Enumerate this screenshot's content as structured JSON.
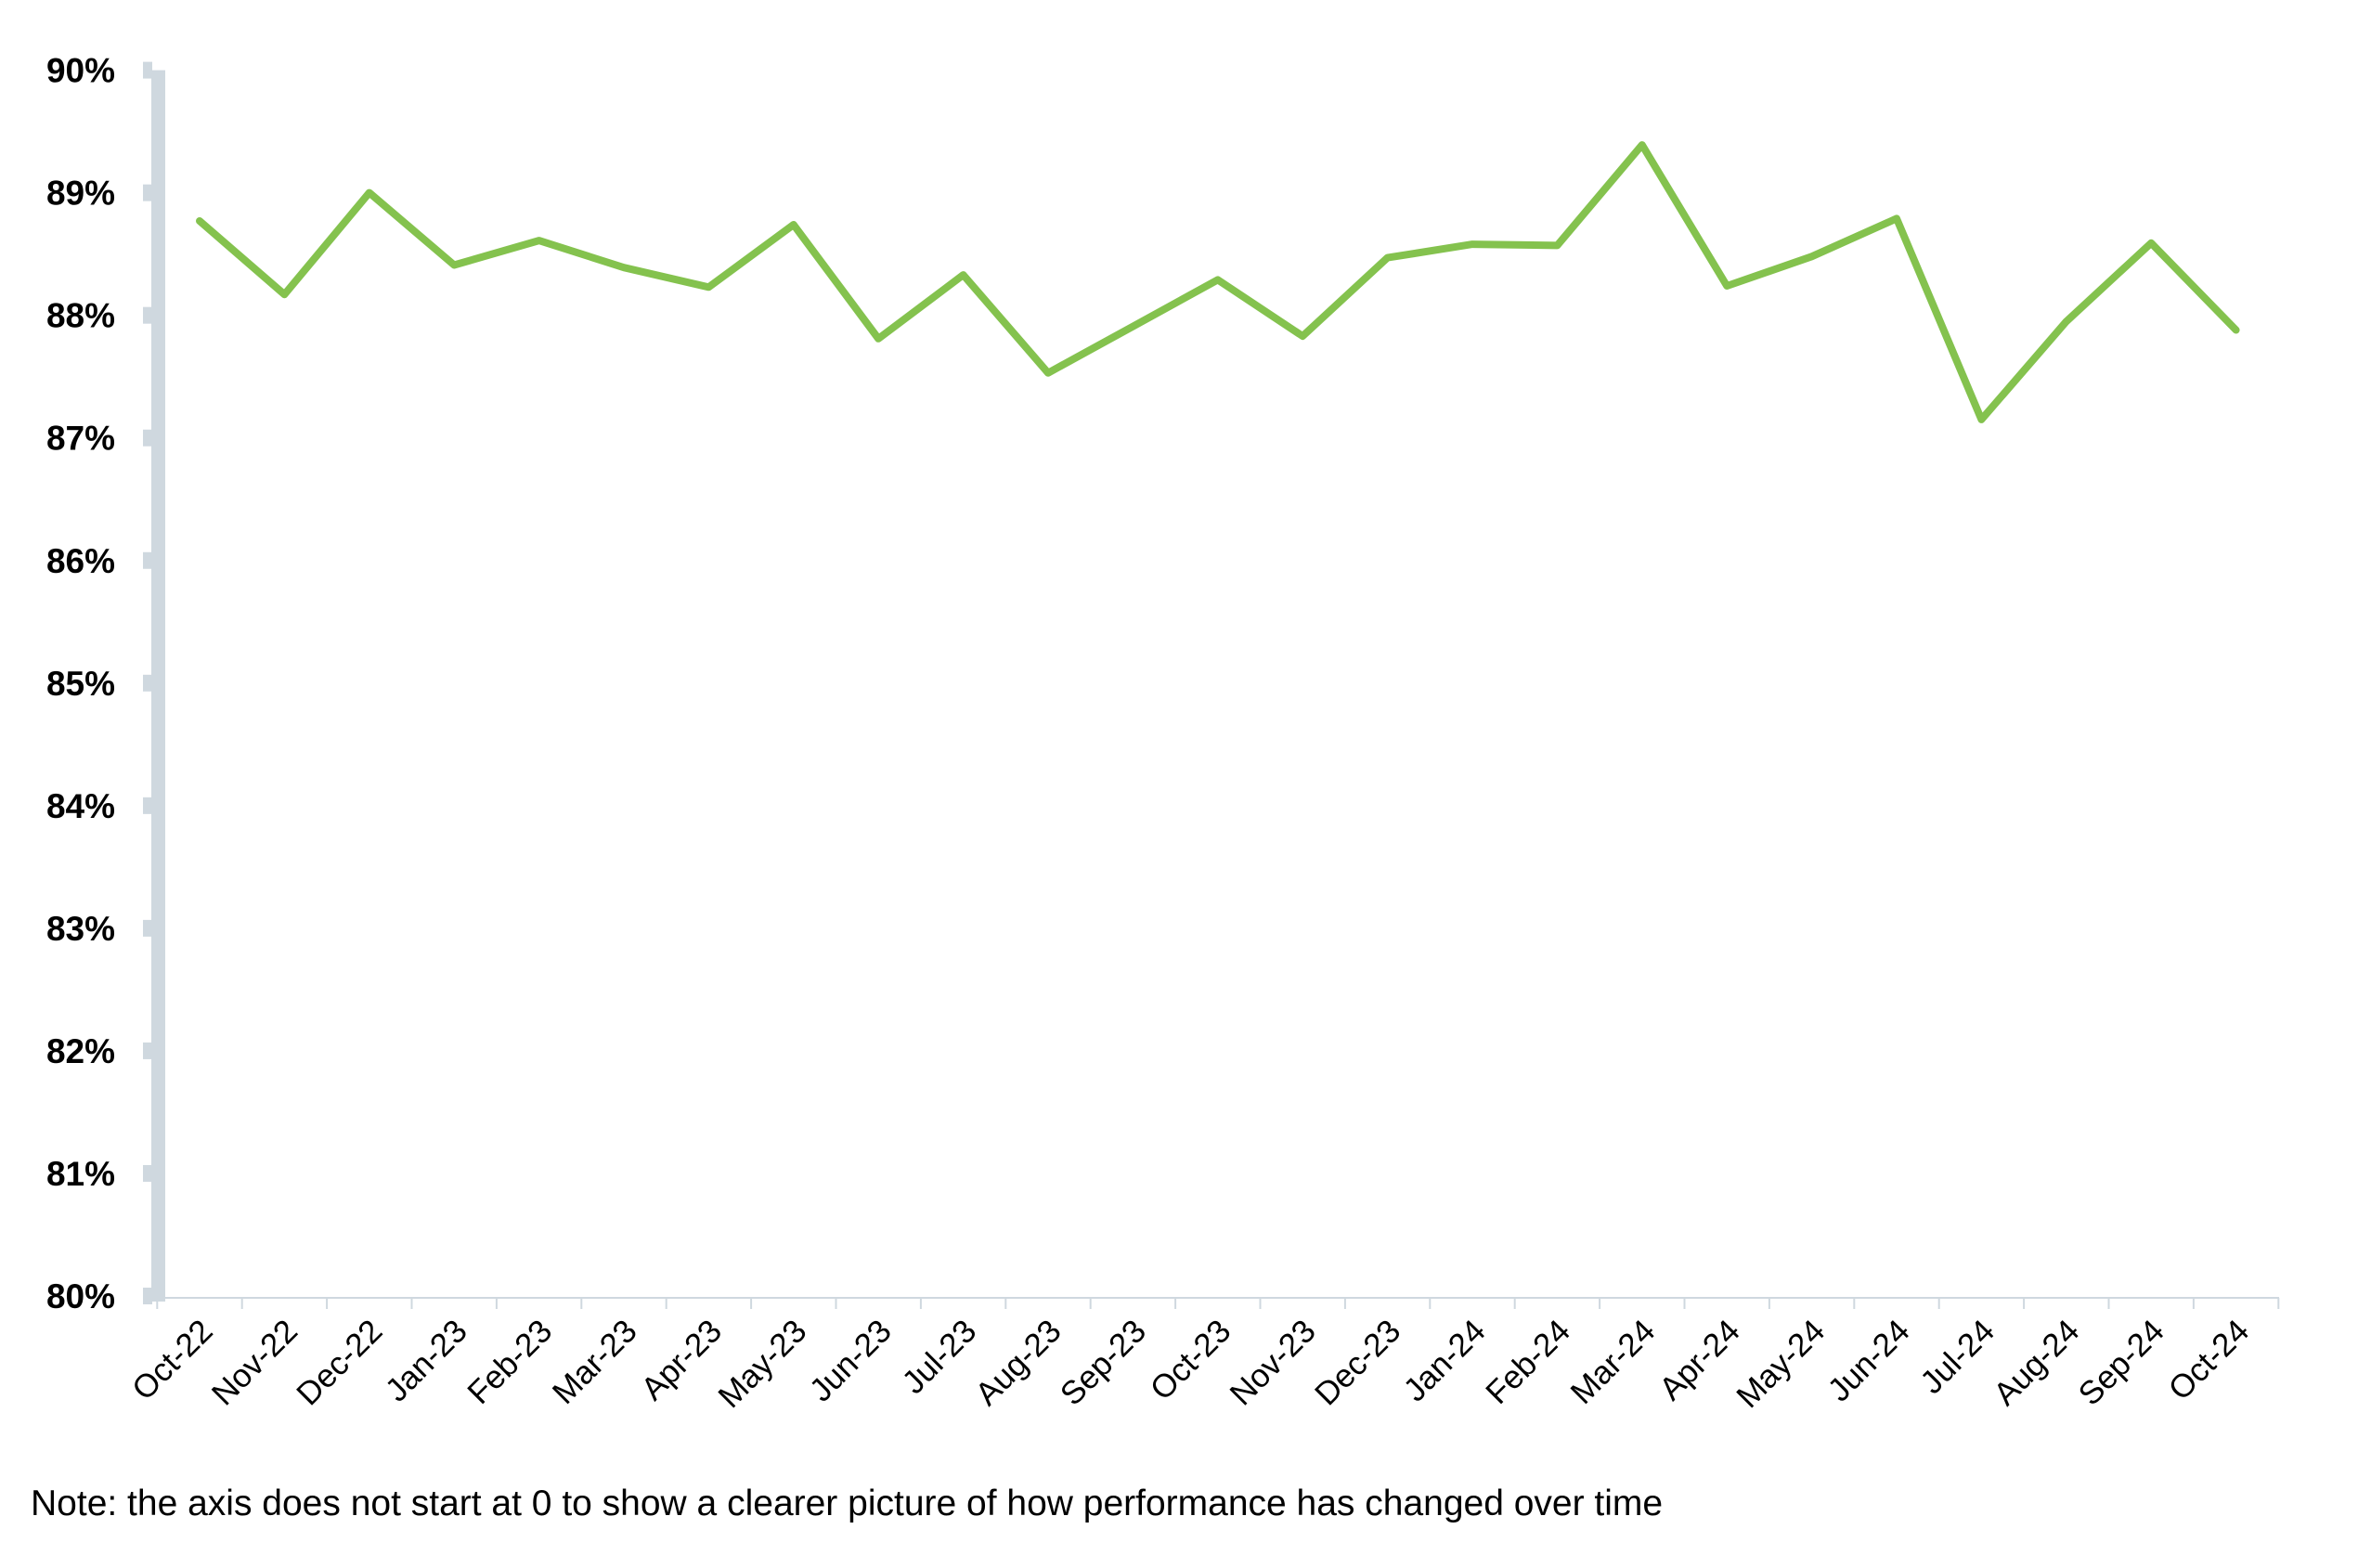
{
  "chart_data": {
    "type": "line",
    "title": "",
    "xlabel": "",
    "ylabel": "",
    "ylim": [
      80,
      90
    ],
    "y_ticks": [
      "80%",
      "81%",
      "82%",
      "83%",
      "84%",
      "85%",
      "86%",
      "87%",
      "88%",
      "89%",
      "90%"
    ],
    "grid": false,
    "legend": "none",
    "categories": [
      "Oct-22",
      "Nov-22",
      "Dec-22",
      "Jan-23",
      "Feb-23",
      "Mar-23",
      "Apr-23",
      "May-23",
      "Jun-23",
      "Jul-23",
      "Aug-23",
      "Sep-23",
      "Oct-23",
      "Nov-23",
      "Dec-23",
      "Jan-24",
      "Feb-24",
      "Mar-24",
      "Apr-24",
      "May-24",
      "Jun-24",
      "Jul-24",
      "Aug-24",
      "Sep-24",
      "Oct-24"
    ],
    "series": [
      {
        "values": [
          88.77,
          88.17,
          89.0,
          88.41,
          88.61,
          88.39,
          88.23,
          88.74,
          87.81,
          88.33,
          87.53,
          87.91,
          88.29,
          87.83,
          88.47,
          88.58,
          88.57,
          89.39,
          88.24,
          88.48,
          88.79,
          87.15,
          87.95,
          88.59,
          87.88
        ]
      }
    ],
    "colors": {
      "line": "#84c24e",
      "axis": "#cfd8df"
    }
  },
  "note": "Note: the axis does not start at 0 to show a clearer picture of how performance has changed over time"
}
